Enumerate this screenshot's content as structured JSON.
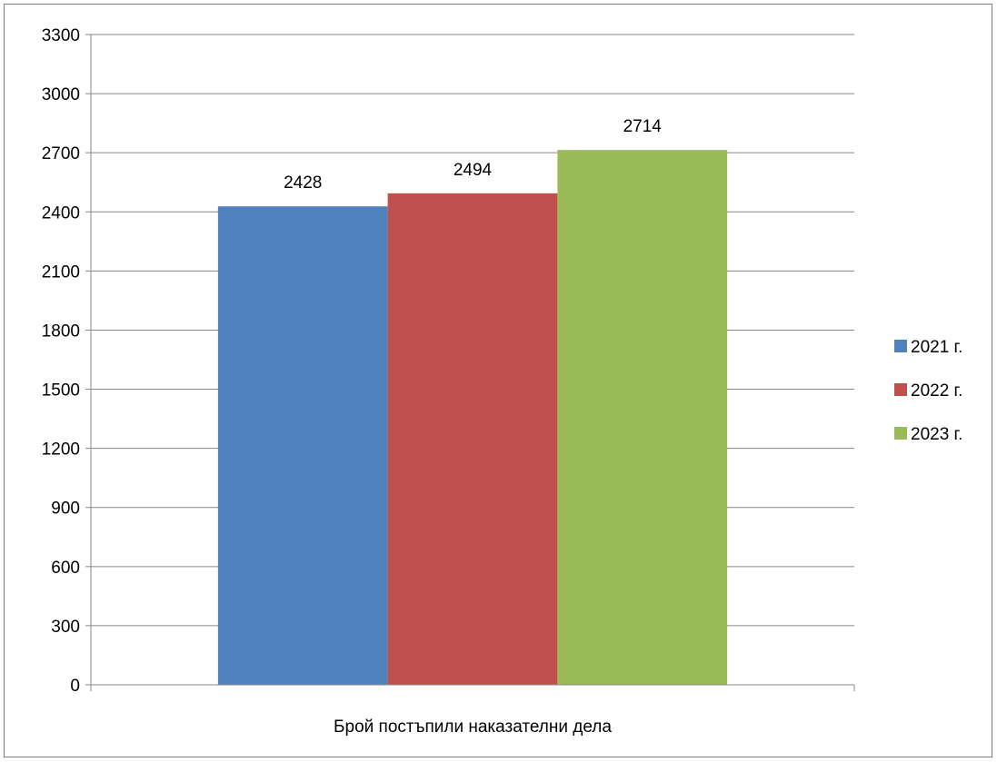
{
  "chart_data": {
    "type": "bar",
    "title": "",
    "xlabel": "",
    "ylabel": "",
    "categories": [
      "Брой постъпили наказателни дела"
    ],
    "series": [
      {
        "name": "2021 г.",
        "values": [
          2428
        ],
        "color": "#4f81bd"
      },
      {
        "name": "2022 г.",
        "values": [
          2494
        ],
        "color": "#c0504d"
      },
      {
        "name": "2023 г.",
        "values": [
          2714
        ],
        "color": "#9bbb59"
      }
    ],
    "ylim": [
      0,
      3300
    ],
    "yticks": [
      0,
      300,
      600,
      900,
      1200,
      1500,
      1800,
      2100,
      2400,
      2700,
      3000,
      3300
    ],
    "grid": true,
    "legend_position": "right",
    "data_labels": true
  }
}
